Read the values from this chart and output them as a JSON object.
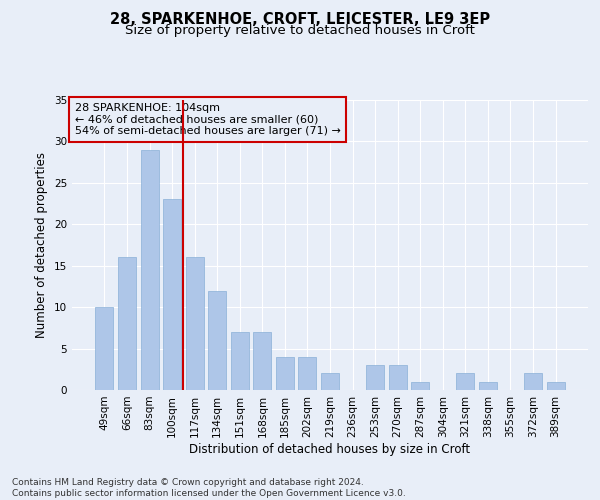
{
  "title": "28, SPARKENHOE, CROFT, LEICESTER, LE9 3EP",
  "subtitle": "Size of property relative to detached houses in Croft",
  "xlabel": "Distribution of detached houses by size in Croft",
  "ylabel": "Number of detached properties",
  "categories": [
    "49sqm",
    "66sqm",
    "83sqm",
    "100sqm",
    "117sqm",
    "134sqm",
    "151sqm",
    "168sqm",
    "185sqm",
    "202sqm",
    "219sqm",
    "236sqm",
    "253sqm",
    "270sqm",
    "287sqm",
    "304sqm",
    "321sqm",
    "338sqm",
    "355sqm",
    "372sqm",
    "389sqm"
  ],
  "values": [
    10,
    16,
    29,
    23,
    16,
    12,
    7,
    7,
    4,
    4,
    2,
    0,
    3,
    3,
    1,
    0,
    2,
    1,
    0,
    2,
    1
  ],
  "bar_color": "#aec6e8",
  "bar_edgecolor": "#8ab0d8",
  "vline_x": 3.5,
  "vline_color": "#cc0000",
  "ylim": [
    0,
    35
  ],
  "yticks": [
    0,
    5,
    10,
    15,
    20,
    25,
    30,
    35
  ],
  "annotation_text": "28 SPARKENHOE: 104sqm\n← 46% of detached houses are smaller (60)\n54% of semi-detached houses are larger (71) →",
  "annotation_box_color": "#cc0000",
  "footer_text": "Contains HM Land Registry data © Crown copyright and database right 2024.\nContains public sector information licensed under the Open Government Licence v3.0.",
  "background_color": "#e8eef8",
  "grid_color": "#ffffff",
  "title_fontsize": 10.5,
  "subtitle_fontsize": 9.5,
  "axis_label_fontsize": 8.5,
  "tick_fontsize": 7.5,
  "annotation_fontsize": 8,
  "footer_fontsize": 6.5
}
